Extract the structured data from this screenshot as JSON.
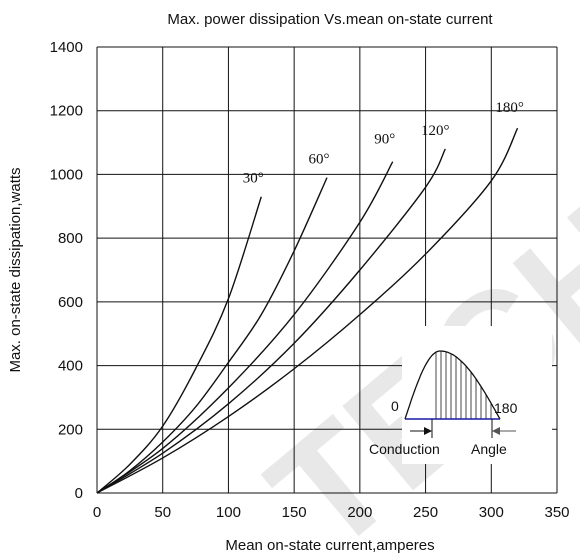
{
  "chart_data": {
    "type": "line",
    "title": "Max. power dissipation Vs.mean on-state current",
    "xlabel": "Mean on-state current,amperes",
    "ylabel": "Max. on-state dissipation,watts",
    "xlim": [
      0,
      350
    ],
    "ylim": [
      0,
      1400
    ],
    "xticks": [
      "0",
      "50",
      "100",
      "150",
      "200",
      "250",
      "300",
      "350"
    ],
    "yticks": [
      "0",
      "200",
      "400",
      "600",
      "800",
      "1000",
      "1200",
      "1400"
    ],
    "grid": true,
    "series": [
      {
        "name": "30°",
        "x": [
          0,
          25,
          50,
          75,
          100,
          125
        ],
        "y": [
          0,
          90,
          210,
          390,
          610,
          930
        ]
      },
      {
        "name": "60°",
        "x": [
          0,
          25,
          50,
          75,
          100,
          125,
          150,
          175
        ],
        "y": [
          0,
          70,
          160,
          270,
          410,
          560,
          760,
          990
        ]
      },
      {
        "name": "90°",
        "x": [
          0,
          50,
          100,
          150,
          200,
          225
        ],
        "y": [
          0,
          140,
          330,
          560,
          850,
          1040
        ]
      },
      {
        "name": "120°",
        "x": [
          0,
          50,
          100,
          150,
          200,
          250,
          265
        ],
        "y": [
          0,
          125,
          280,
          470,
          700,
          960,
          1080
        ]
      },
      {
        "name": "180°",
        "x": [
          0,
          50,
          100,
          150,
          200,
          250,
          300,
          320
        ],
        "y": [
          0,
          110,
          240,
          390,
          560,
          750,
          980,
          1145
        ]
      }
    ],
    "inset": {
      "label_start": "0",
      "label_end": "180",
      "caption_left": "Conduction",
      "caption_right": "Angle"
    }
  },
  "watermark": "TECH"
}
